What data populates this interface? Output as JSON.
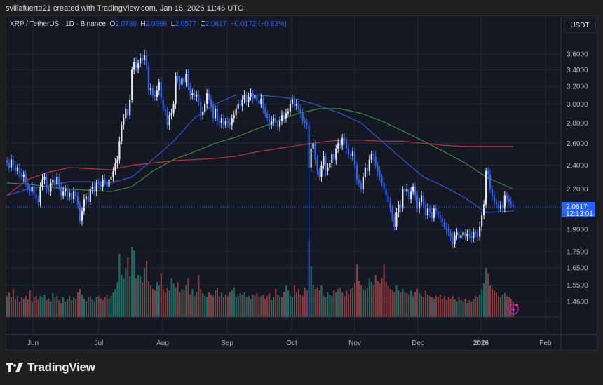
{
  "credit": "svillafuerte21 created with TradingView.com, Jan 16, 2026 11:46 UTC",
  "legend": {
    "symbol": "XRP / TetherUS · 1D · Binance",
    "o_label": "O",
    "o": "2.0789",
    "h_label": "H",
    "h": "2.0866",
    "l_label": "L",
    "l": "2.0577",
    "c_label": "C",
    "c": "2.0617",
    "change": "−0.0172 (−0.83%)"
  },
  "currency": "USDT",
  "last_price": {
    "value": "2.0617",
    "countdown": "12:13:01"
  },
  "footer": {
    "brand": "TradingView"
  },
  "colors": {
    "up_candle": "#e6e8ee",
    "down_candle": "#2962ff",
    "up_volume": "#1f6e66",
    "down_volume": "#8c3a3c",
    "ma_short": "#2f55d4",
    "ma_mid": "#3d8b3a",
    "ma_long": "#c2313f",
    "last_price": "#2962ff"
  },
  "chart_data": {
    "type": "candlestick",
    "title": "XRP / TetherUS · 1D · Binance",
    "y_scale": "log",
    "ylim": [
      1.4,
      3.75
    ],
    "grid": true,
    "y_ticks": [
      "3.6000",
      "3.4000",
      "3.2000",
      "3.0000",
      "2.8000",
      "2.6000",
      "2.4000",
      "2.2000",
      "1.9000",
      "1.7500",
      "1.6500",
      "1.5500",
      "1.4600"
    ],
    "x_ticks": [
      "Jun",
      "Jul",
      "Aug",
      "Sep",
      "Oct",
      "Nov",
      "Dec",
      "2026",
      "Feb"
    ],
    "closes": [
      2.42,
      2.38,
      2.45,
      2.4,
      2.35,
      2.38,
      2.33,
      2.3,
      2.32,
      2.25,
      2.2,
      2.18,
      2.22,
      2.16,
      2.12,
      2.1,
      2.22,
      2.28,
      2.3,
      2.2,
      2.18,
      2.25,
      2.28,
      2.24,
      2.3,
      2.22,
      2.15,
      2.18,
      2.2,
      2.14,
      2.17,
      2.12,
      2.18,
      2.14,
      2.08,
      1.96,
      2.03,
      2.12,
      2.14,
      2.1,
      2.2,
      2.22,
      2.18,
      2.25,
      2.24,
      2.22,
      2.28,
      2.26,
      2.22,
      2.28,
      2.3,
      2.35,
      2.42,
      2.45,
      2.62,
      2.78,
      2.85,
      2.95,
      2.88,
      3.05,
      3.4,
      3.5,
      3.42,
      3.48,
      3.55,
      3.52,
      3.58,
      3.45,
      3.15,
      3.18,
      3.1,
      3.08,
      3.15,
      3.25,
      3.05,
      2.95,
      2.92,
      2.78,
      2.88,
      2.9,
      3.0,
      3.32,
      3.28,
      3.22,
      3.3,
      3.25,
      3.35,
      3.2,
      3.1,
      3.12,
      3.08,
      3.1,
      3.02,
      2.88,
      2.92,
      3.0,
      3.12,
      3.05,
      2.98,
      2.85,
      2.95,
      2.82,
      2.8,
      2.85,
      2.78,
      2.82,
      2.8,
      2.78,
      2.85,
      2.88,
      2.95,
      3.0,
      2.98,
      3.05,
      3.1,
      3.02,
      3.08,
      3.12,
      3.06,
      3.1,
      3.04,
      3.0,
      3.06,
      2.95,
      2.9,
      2.85,
      2.78,
      2.82,
      2.85,
      2.8,
      2.76,
      2.82,
      2.88,
      2.85,
      2.9,
      2.92,
      3.0,
      3.05,
      2.98,
      3.0,
      2.95,
      2.9,
      2.82,
      2.8,
      2.78,
      2.38,
      2.55,
      2.6,
      2.45,
      2.35,
      2.3,
      2.4,
      2.48,
      2.35,
      2.38,
      2.42,
      2.5,
      2.45,
      2.55,
      2.6,
      2.58,
      2.65,
      2.62,
      2.55,
      2.5,
      2.48,
      2.52,
      2.4,
      2.28,
      2.25,
      2.2,
      2.3,
      2.38,
      2.35,
      2.45,
      2.5,
      2.48,
      2.4,
      2.35,
      2.3,
      2.25,
      2.2,
      2.15,
      2.1,
      2.05,
      1.98,
      1.92,
      2.02,
      2.08,
      2.05,
      2.2,
      2.18,
      2.2,
      2.12,
      2.18,
      2.22,
      2.15,
      2.05,
      2.1,
      2.15,
      2.08,
      2.0,
      2.05,
      2.02,
      1.98,
      2.05,
      2.03,
      2.0,
      1.98,
      1.95,
      1.92,
      1.9,
      1.88,
      1.85,
      1.8,
      1.86,
      1.88,
      1.84,
      1.86,
      1.88,
      1.85,
      1.87,
      1.86,
      1.84,
      1.88,
      1.87,
      1.85,
      1.92,
      2.0,
      2.08,
      2.35,
      2.32,
      2.2,
      2.15,
      2.1,
      2.08,
      2.05,
      2.07,
      2.05,
      2.15,
      2.12,
      2.1,
      2.08,
      2.0617
    ],
    "crash_candle": {
      "index": 145,
      "low": 1.28
    },
    "peak_candle": {
      "index": 66,
      "high": 3.66
    },
    "volume_relative": [
      30,
      35,
      28,
      40,
      25,
      30,
      22,
      28,
      26,
      30,
      25,
      38,
      22,
      28,
      30,
      25,
      30,
      28,
      32,
      24,
      26,
      22,
      34,
      28,
      30,
      24,
      20,
      28,
      22,
      26,
      30,
      24,
      28,
      26,
      35,
      40,
      32,
      26,
      22,
      28,
      30,
      25,
      22,
      28,
      30,
      26,
      24,
      28,
      32,
      26,
      30,
      35,
      40,
      50,
      90,
      60,
      55,
      70,
      85,
      58,
      100,
      95,
      55,
      60,
      58,
      50,
      70,
      80,
      52,
      45,
      40,
      38,
      50,
      45,
      62,
      40,
      35,
      42,
      38,
      55,
      48,
      42,
      50,
      35,
      40,
      38,
      45,
      55,
      32,
      40,
      30,
      36,
      60,
      40,
      34,
      30,
      28,
      36,
      32,
      30,
      38,
      42,
      30,
      35,
      28,
      32,
      30,
      36,
      38,
      42,
      28,
      30,
      34,
      32,
      35,
      28,
      30,
      26,
      32,
      30,
      34,
      28,
      30,
      32,
      26,
      30,
      34,
      24,
      28,
      40,
      32,
      30,
      28,
      36,
      45,
      38,
      30,
      28,
      45,
      35,
      40,
      32,
      30,
      42,
      38,
      110,
      72,
      45,
      40,
      42,
      38,
      45,
      30,
      28,
      35,
      32,
      30,
      38,
      36,
      40,
      42,
      35,
      30,
      38,
      32,
      40,
      42,
      48,
      75,
      52,
      45,
      40,
      38,
      42,
      55,
      50,
      45,
      60,
      52,
      48,
      55,
      75,
      50,
      44,
      40,
      38,
      36,
      45,
      38,
      35,
      40,
      36,
      34,
      32,
      38,
      30,
      36,
      40,
      34,
      30,
      28,
      38,
      32,
      30,
      28,
      26,
      30,
      28,
      32,
      26,
      30,
      24,
      28,
      26,
      30,
      25,
      22,
      28,
      24,
      22,
      26,
      20,
      24,
      22,
      26,
      30,
      28,
      32,
      40,
      48,
      70,
      62,
      45,
      40,
      38,
      35,
      30,
      28,
      32,
      34,
      30,
      28,
      26,
      22
    ],
    "moving_averages_every_10_candles": [
      {
        "color": "#2f55d4",
        "values": [
          2.15,
          2.2,
          2.23,
          2.26,
          2.26,
          2.25,
          2.3,
          2.45,
          2.62,
          2.85,
          3.0,
          3.1,
          3.1,
          3.08,
          3.05,
          2.98,
          2.9,
          2.8,
          2.62,
          2.45,
          2.3,
          2.22,
          2.13,
          2.02,
          2.03
        ]
      },
      {
        "color": "#3d8b3a",
        "values": [
          2.25,
          2.24,
          2.22,
          2.2,
          2.19,
          2.18,
          2.22,
          2.35,
          2.45,
          2.52,
          2.6,
          2.66,
          2.74,
          2.82,
          2.9,
          2.95,
          2.95,
          2.9,
          2.82,
          2.72,
          2.62,
          2.52,
          2.42,
          2.3,
          2.2
        ]
      },
      {
        "color": "#c2313f",
        "values": [
          2.15,
          2.28,
          2.34,
          2.38,
          2.37,
          2.36,
          2.4,
          2.42,
          2.44,
          2.45,
          2.46,
          2.48,
          2.52,
          2.55,
          2.58,
          2.61,
          2.63,
          2.63,
          2.62,
          2.62,
          2.6,
          2.58,
          2.57,
          2.57,
          2.57
        ]
      }
    ]
  }
}
